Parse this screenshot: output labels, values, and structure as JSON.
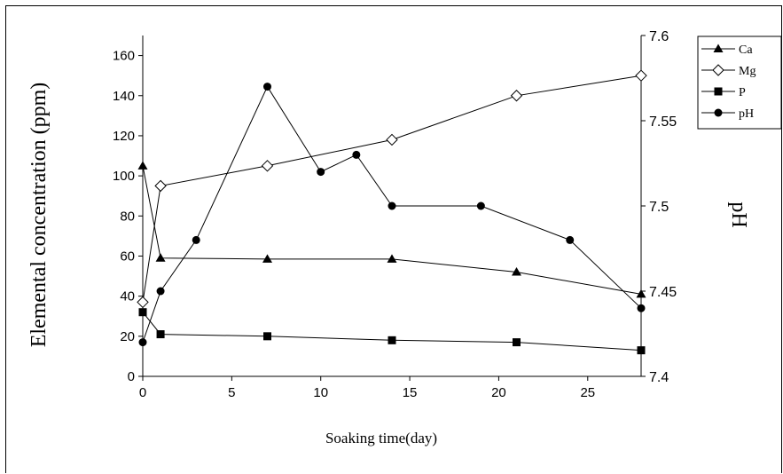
{
  "chart_data": {
    "type": "line",
    "xlabel": "Soaking time(day)",
    "ylabel": "Elemental concentration (ppm)",
    "y2label": "pH",
    "xlim": [
      0,
      28
    ],
    "ylim": [
      0,
      170
    ],
    "y2lim": [
      7.4,
      7.6
    ],
    "x_ticks": [
      "0",
      "5",
      "10",
      "15",
      "20",
      "25"
    ],
    "y_ticks": [
      "0",
      "20",
      "40",
      "60",
      "80",
      "100",
      "120",
      "140",
      "160"
    ],
    "y2_ticks": [
      "7.4",
      "7.45",
      "7.5",
      "7.55",
      "7.6"
    ],
    "legend_position": "top-right outside",
    "grid": false,
    "series": [
      {
        "name": "Ca",
        "axis": "left",
        "marker": "triangle",
        "x": [
          0,
          1,
          7,
          14,
          21,
          28
        ],
        "y": [
          105,
          59,
          58.5,
          58.5,
          52,
          41
        ]
      },
      {
        "name": "Mg",
        "axis": "left",
        "marker": "diamond-open",
        "x": [
          0,
          1,
          7,
          14,
          21,
          28
        ],
        "y": [
          37,
          95,
          105,
          118,
          140,
          150
        ]
      },
      {
        "name": "P",
        "axis": "left",
        "marker": "square",
        "x": [
          0,
          1,
          7,
          14,
          21,
          28
        ],
        "y": [
          32,
          21,
          20,
          18,
          17,
          13
        ]
      },
      {
        "name": "pH",
        "axis": "right",
        "marker": "circle",
        "x": [
          0,
          1,
          3,
          7,
          10,
          12,
          14,
          19,
          24,
          28
        ],
        "y": [
          7.42,
          7.45,
          7.48,
          7.57,
          7.52,
          7.53,
          7.5,
          7.5,
          7.48,
          7.44
        ]
      }
    ]
  }
}
